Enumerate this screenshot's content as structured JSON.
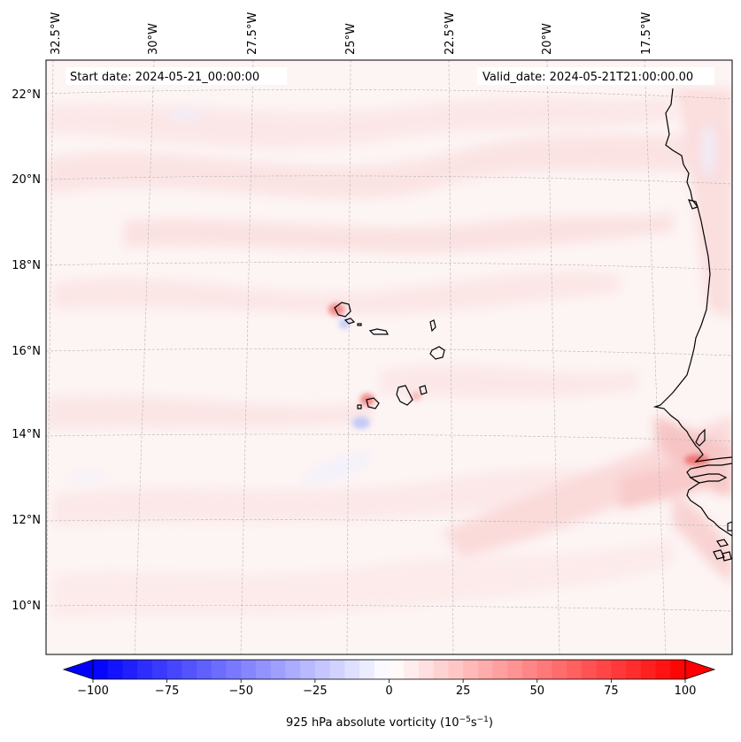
{
  "map": {
    "start_date": "Start date: 2024-05-21_00:00:00",
    "valid_date": "Valid_date: 2024-05-21T21:00:00.00",
    "lon_labels": [
      "32.5°W",
      "30°W",
      "27.5°W",
      "25°W",
      "22.5°W",
      "20°W",
      "17.5°W"
    ],
    "lat_labels": [
      "22°N",
      "20°N",
      "18°N",
      "16°N",
      "14°N",
      "12°N",
      "10°N"
    ],
    "colors": {
      "coastline": "#000000",
      "grid": "#b0b0b0",
      "background_field": "#fdf3f3",
      "positive": "#ff0000",
      "negative": "#0000ff"
    }
  },
  "colorbar": {
    "title_main": "925 hPa absolute vorticity (10",
    "title_exp1": "−5",
    "title_mid": "s",
    "title_exp2": "−1",
    "title_end": ")",
    "tick_labels": [
      "−100",
      "−75",
      "−50",
      "−25",
      "0",
      "25",
      "50",
      "75",
      "100"
    ],
    "min": -100,
    "max": 100,
    "step": 5,
    "extend": "both",
    "colormap": "bwr"
  }
}
